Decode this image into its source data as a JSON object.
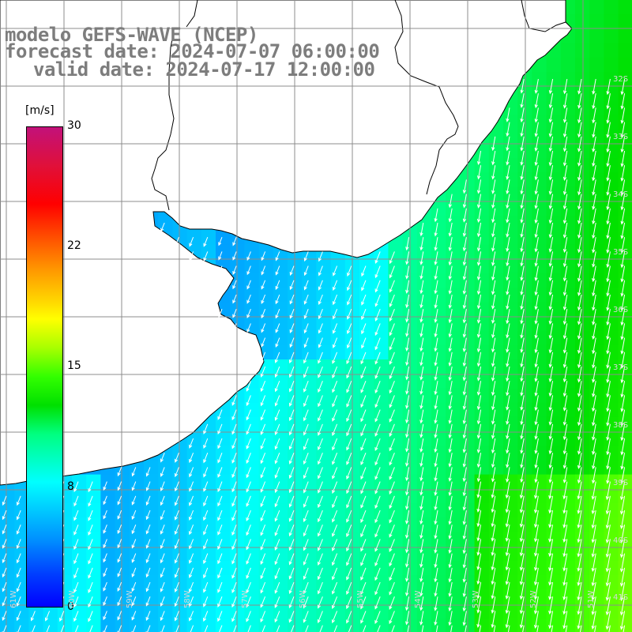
{
  "title": {
    "model": "modelo GEFS-WAVE (NCEP)",
    "forecast": "forecast date: 2024-07-07 06:00:00",
    "valid": "valid date: 2024-07-17 12:00:00"
  },
  "colorbar": {
    "units": "[m/s]",
    "ticks": [
      "30",
      "22",
      "15",
      "8",
      "0"
    ],
    "range": [
      0,
      30
    ]
  },
  "map": {
    "lat_labels": [
      "32S",
      "33S",
      "34S",
      "35S",
      "36S",
      "37S",
      "38S",
      "39S",
      "40S",
      "41S"
    ],
    "lon_labels": [
      "61W",
      "60W",
      "59W",
      "58W",
      "57W",
      "56W",
      "55W",
      "54W",
      "53W",
      "52W",
      "51W"
    ],
    "colors": {
      "land": "#ffffff",
      "coast": "#000000",
      "grid": "#8c8c8c",
      "arrows": "#ffffff",
      "label": "#7d7d7d"
    }
  }
}
